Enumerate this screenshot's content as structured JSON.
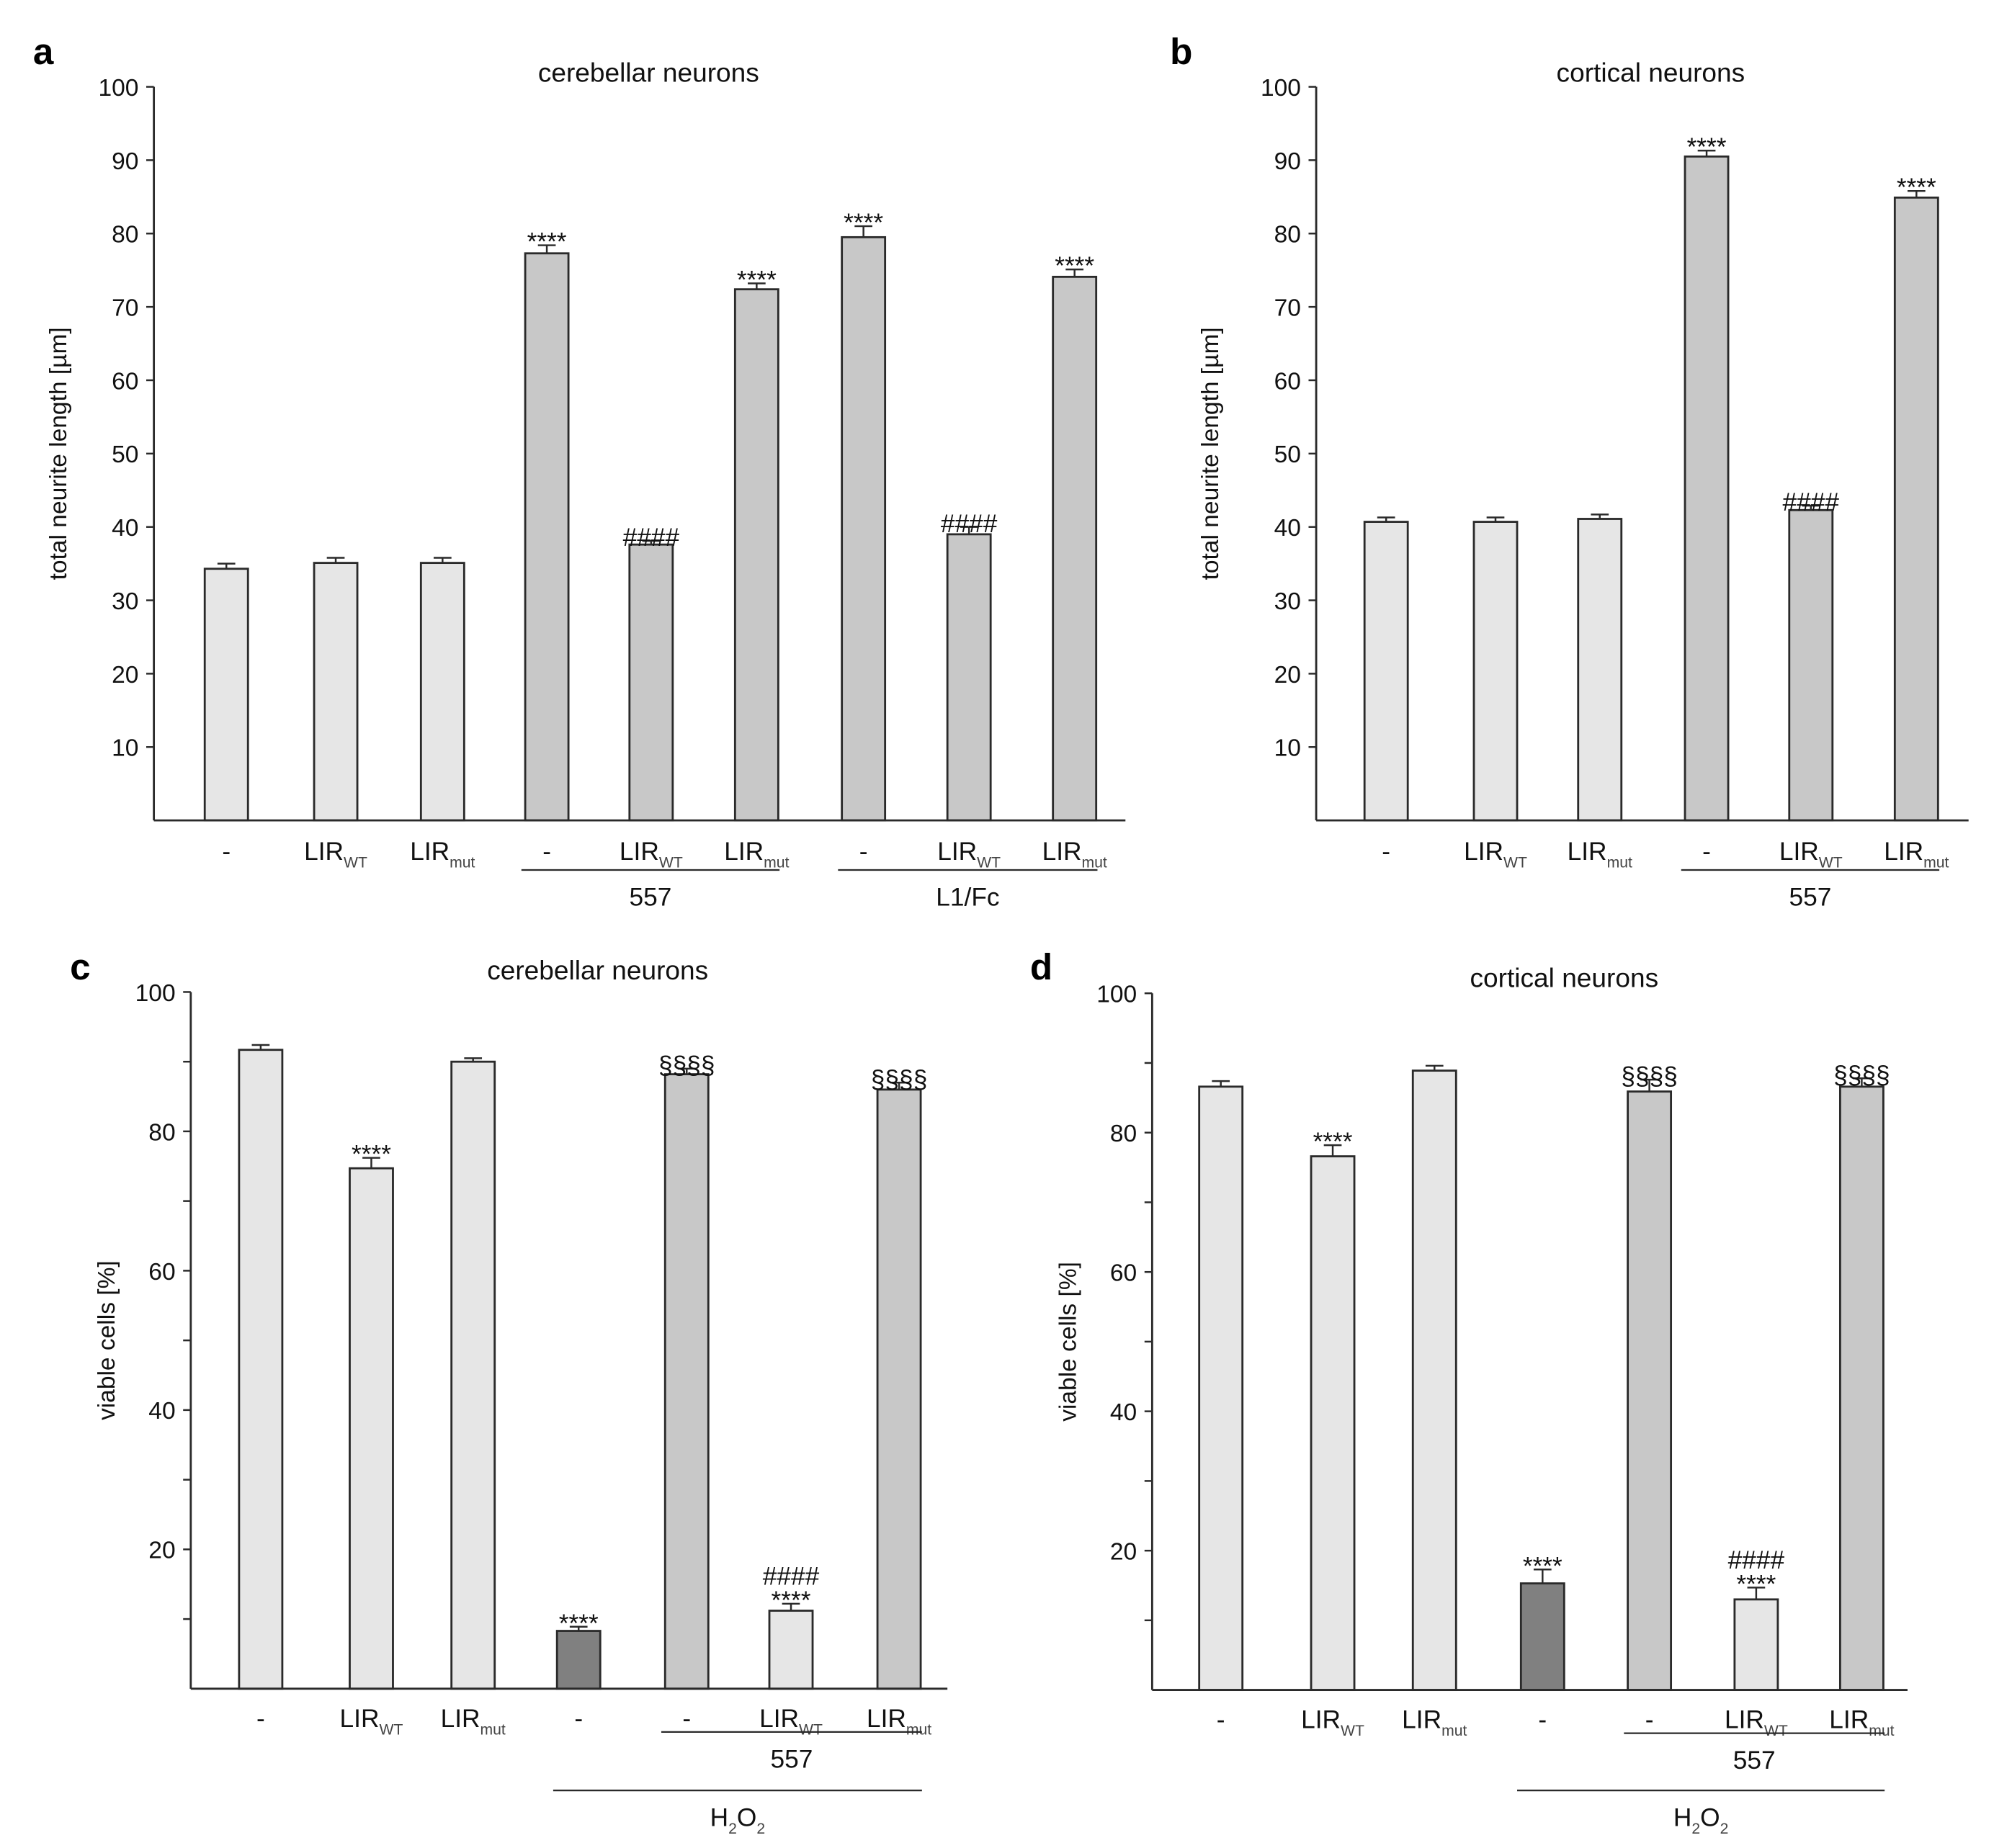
{
  "colors": {
    "light": "#e6e6e6",
    "medium": "#c8c8c8",
    "dark": "#808080",
    "stroke": "#2a2a2a"
  },
  "chart_data": [
    {
      "type": "bar",
      "panel": "a",
      "title": "cerebellar neurons",
      "ylabel": "total neurite length [µm]",
      "ylim": [
        0,
        100
      ],
      "yticks": [
        10,
        20,
        30,
        40,
        50,
        60,
        70,
        80,
        90,
        100
      ],
      "minor_ticks": [],
      "categories": [
        [
          {
            "t": "-"
          }
        ],
        [
          {
            "t": "LIR"
          },
          {
            "t": "WT",
            "sub": true
          }
        ],
        [
          {
            "t": "LIR"
          },
          {
            "t": "mut",
            "sub": true
          }
        ],
        [
          {
            "t": "-"
          }
        ],
        [
          {
            "t": "LIR"
          },
          {
            "t": "WT",
            "sub": true
          }
        ],
        [
          {
            "t": "LIR"
          },
          {
            "t": "mut",
            "sub": true
          }
        ],
        [
          {
            "t": "-"
          }
        ],
        [
          {
            "t": "LIR"
          },
          {
            "t": "WT",
            "sub": true
          }
        ],
        [
          {
            "t": "LIR"
          },
          {
            "t": "mut",
            "sub": true
          }
        ]
      ],
      "values": [
        34.3,
        35.1,
        35.1,
        77.3,
        37.6,
        72.4,
        79.5,
        39.0,
        74.1
      ],
      "errors": [
        0.7,
        0.7,
        0.7,
        1.1,
        0.5,
        0.8,
        1.5,
        1.0,
        1.0
      ],
      "fills": [
        "light",
        "light",
        "light",
        "medium",
        "medium",
        "medium",
        "medium",
        "medium",
        "medium"
      ],
      "annotations": [
        [],
        [],
        [],
        [
          "****"
        ],
        [
          "####"
        ],
        [
          "****"
        ],
        [
          "****"
        ],
        [
          "####"
        ],
        [
          "****"
        ]
      ],
      "groups": [
        {
          "label": [
            {
              "t": "557"
            }
          ],
          "from": 3,
          "to": 5,
          "level": 1
        },
        {
          "label": [
            {
              "t": "L1/Fc"
            }
          ],
          "from": 6,
          "to": 8,
          "level": 1
        }
      ]
    },
    {
      "type": "bar",
      "panel": "b",
      "title": "cortical neurons",
      "ylabel": "total neurite length [µm]",
      "ylim": [
        0,
        100
      ],
      "yticks": [
        10,
        20,
        30,
        40,
        50,
        60,
        70,
        80,
        90,
        100
      ],
      "minor_ticks": [],
      "categories": [
        [
          {
            "t": "-"
          }
        ],
        [
          {
            "t": "LIR"
          },
          {
            "t": "WT",
            "sub": true
          }
        ],
        [
          {
            "t": "LIR"
          },
          {
            "t": "mut",
            "sub": true
          }
        ],
        [
          {
            "t": "-"
          }
        ],
        [
          {
            "t": "LIR"
          },
          {
            "t": "WT",
            "sub": true
          }
        ],
        [
          {
            "t": "LIR"
          },
          {
            "t": "mut",
            "sub": true
          }
        ]
      ],
      "values": [
        40.7,
        40.7,
        41.1,
        90.5,
        42.3,
        84.9
      ],
      "errors": [
        0.6,
        0.6,
        0.6,
        0.8,
        0.6,
        0.9
      ],
      "fills": [
        "light",
        "light",
        "light",
        "medium",
        "medium",
        "medium"
      ],
      "annotations": [
        [],
        [],
        [],
        [
          "****"
        ],
        [
          "####"
        ],
        [
          "****"
        ]
      ],
      "groups": [
        {
          "label": [
            {
              "t": "557"
            }
          ],
          "from": 3,
          "to": 5,
          "level": 1
        }
      ]
    },
    {
      "type": "bar",
      "panel": "c",
      "title": "cerebellar neurons",
      "ylabel": "viable cells [%]",
      "ylim": [
        0,
        100
      ],
      "yticks": [
        20,
        40,
        60,
        80,
        100
      ],
      "minor_ticks": [
        10,
        30,
        50,
        70,
        90
      ],
      "categories": [
        [
          {
            "t": "-"
          }
        ],
        [
          {
            "t": "LIR"
          },
          {
            "t": "WT",
            "sub": true
          }
        ],
        [
          {
            "t": "LIR"
          },
          {
            "t": "mut",
            "sub": true
          }
        ],
        [
          {
            "t": "-"
          }
        ],
        [
          {
            "t": "-"
          }
        ],
        [
          {
            "t": "LIR"
          },
          {
            "t": "WT",
            "sub": true
          }
        ],
        [
          {
            "t": "LIR"
          },
          {
            "t": "mut",
            "sub": true
          }
        ]
      ],
      "values": [
        91.7,
        74.7,
        90.0,
        8.3,
        88.2,
        11.2,
        86.0
      ],
      "errors": [
        0.7,
        1.5,
        0.5,
        0.6,
        0.8,
        1.0,
        1.0
      ],
      "fills": [
        "light",
        "light",
        "light",
        "dark",
        "medium",
        "light",
        "medium"
      ],
      "annotations": [
        [],
        [
          "****"
        ],
        [],
        [
          "****"
        ],
        [
          "§§§§"
        ],
        [
          "####",
          "****"
        ],
        [
          "§§§§"
        ]
      ],
      "groups": [
        {
          "label": [
            {
              "t": "557"
            }
          ],
          "from": 4,
          "to": 6,
          "level": 1
        },
        {
          "label": [
            {
              "t": "H"
            },
            {
              "t": "2",
              "sub": true
            },
            {
              "t": "O"
            },
            {
              "t": "2",
              "sub": true
            }
          ],
          "from": 3,
          "to": 6,
          "level": 2
        }
      ]
    },
    {
      "type": "bar",
      "panel": "d",
      "title": "cortical neurons",
      "ylabel": "viable cells [%]",
      "ylim": [
        0,
        100
      ],
      "yticks": [
        20,
        40,
        60,
        80,
        100
      ],
      "minor_ticks": [
        10,
        30,
        50,
        70,
        90
      ],
      "categories": [
        [
          {
            "t": "-"
          }
        ],
        [
          {
            "t": "LIR"
          },
          {
            "t": "WT",
            "sub": true
          }
        ],
        [
          {
            "t": "LIR"
          },
          {
            "t": "mut",
            "sub": true
          }
        ],
        [
          {
            "t": "-"
          }
        ],
        [
          {
            "t": "-"
          }
        ],
        [
          {
            "t": "LIR"
          },
          {
            "t": "WT",
            "sub": true
          }
        ],
        [
          {
            "t": "LIR"
          },
          {
            "t": "mut",
            "sub": true
          }
        ]
      ],
      "values": [
        86.6,
        76.6,
        88.9,
        15.3,
        85.9,
        13.0,
        86.6
      ],
      "errors": [
        0.8,
        1.6,
        0.7,
        2.0,
        1.7,
        1.7,
        1.2
      ],
      "fills": [
        "light",
        "light",
        "light",
        "dark",
        "medium",
        "light",
        "medium"
      ],
      "annotations": [
        [],
        [
          "****"
        ],
        [],
        [
          "****"
        ],
        [
          "§§§§"
        ],
        [
          "####",
          "****"
        ],
        [
          "§§§§"
        ]
      ],
      "groups": [
        {
          "label": [
            {
              "t": "557"
            }
          ],
          "from": 4,
          "to": 6,
          "level": 1
        },
        {
          "label": [
            {
              "t": "H"
            },
            {
              "t": "2",
              "sub": true
            },
            {
              "t": "O"
            },
            {
              "t": "2",
              "sub": true
            }
          ],
          "from": 3,
          "to": 6,
          "level": 2
        }
      ]
    }
  ]
}
